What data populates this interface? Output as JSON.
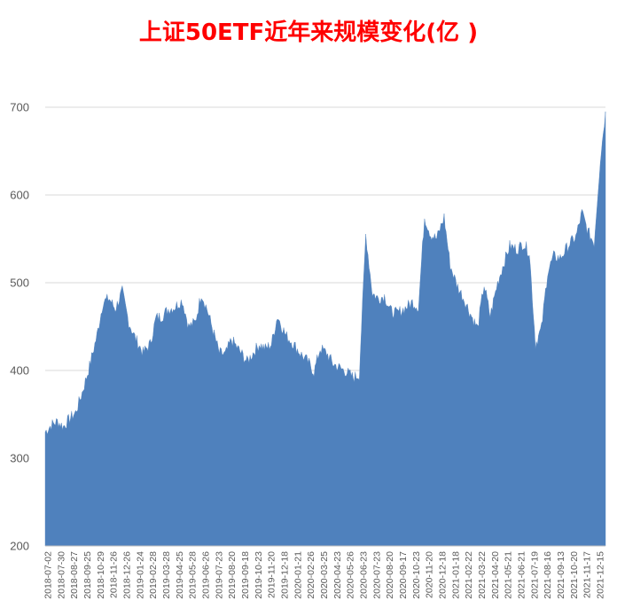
{
  "chart_data": {
    "type": "area",
    "title": "上证50ETF近年来规模变化(亿 )",
    "xlabel": "",
    "ylabel": "",
    "ylim": [
      200,
      700
    ],
    "yticks": [
      200,
      300,
      400,
      500,
      600,
      700
    ],
    "grid": true,
    "legend": "none",
    "color": "#4f81bd",
    "x_tick_labels": [
      "2018-07-02",
      "2018-07-30",
      "2018-08-27",
      "2018-09-25",
      "2018-10-29",
      "2018-11-26",
      "2018-12-26",
      "2019-01-24",
      "2019-02-28",
      "2019-03-28",
      "2019-04-25",
      "2019-05-28",
      "2019-06-26",
      "2019-07-23",
      "2019-08-20",
      "2019-09-18",
      "2019-10-23",
      "2019-11-20",
      "2019-12-18",
      "2020-01-21",
      "2020-02-26",
      "2020-03-25",
      "2020-04-23",
      "2020-05-26",
      "2020-06-23",
      "2020-07-23",
      "2020-08-20",
      "2020-09-17",
      "2020-10-23",
      "2020-11-20",
      "2020-12-18",
      "2021-01-18",
      "2021-02-22",
      "2021-03-22",
      "2021-04-20",
      "2021-05-21",
      "2021-06-21",
      "2021-07-19",
      "2021-08-16",
      "2021-09-13",
      "2021-10-20",
      "2021-11-17",
      "2021-12-15"
    ],
    "x": [
      "2018-07-02",
      "2018-07-16",
      "2018-07-30",
      "2018-08-13",
      "2018-08-27",
      "2018-09-10",
      "2018-09-25",
      "2018-10-12",
      "2018-10-29",
      "2018-11-12",
      "2018-11-26",
      "2018-12-10",
      "2018-12-26",
      "2019-01-10",
      "2019-01-24",
      "2019-02-12",
      "2019-02-28",
      "2019-03-14",
      "2019-03-28",
      "2019-04-11",
      "2019-04-25",
      "2019-05-13",
      "2019-05-28",
      "2019-06-12",
      "2019-06-26",
      "2019-07-09",
      "2019-07-23",
      "2019-08-06",
      "2019-08-20",
      "2019-09-03",
      "2019-09-18",
      "2019-10-09",
      "2019-10-23",
      "2019-11-06",
      "2019-11-20",
      "2019-12-04",
      "2019-12-18",
      "2020-01-06",
      "2020-01-21",
      "2020-02-11",
      "2020-02-26",
      "2020-03-11",
      "2020-03-25",
      "2020-04-09",
      "2020-04-23",
      "2020-05-12",
      "2020-05-26",
      "2020-06-09",
      "2020-06-23",
      "2020-07-08",
      "2020-07-23",
      "2020-08-06",
      "2020-08-20",
      "2020-09-03",
      "2020-09-17",
      "2020-10-09",
      "2020-10-23",
      "2020-11-06",
      "2020-11-20",
      "2020-12-04",
      "2020-12-18",
      "2021-01-04",
      "2021-01-18",
      "2021-02-02",
      "2021-02-22",
      "2021-03-08",
      "2021-03-22",
      "2021-04-06",
      "2021-04-20",
      "2021-05-07",
      "2021-05-21",
      "2021-06-04",
      "2021-06-21",
      "2021-07-05",
      "2021-07-19",
      "2021-08-02",
      "2021-08-16",
      "2021-08-30",
      "2021-09-13",
      "2021-09-28",
      "2021-10-20",
      "2021-11-03",
      "2021-11-17",
      "2021-12-01",
      "2021-12-15",
      "2021-12-29",
      "2022-01-10"
    ],
    "values": [
      330,
      338,
      342,
      336,
      345,
      352,
      375,
      405,
      440,
      478,
      482,
      470,
      490,
      455,
      438,
      420,
      430,
      460,
      462,
      470,
      472,
      480,
      450,
      455,
      488,
      470,
      445,
      420,
      418,
      435,
      425,
      410,
      420,
      430,
      425,
      430,
      462,
      440,
      432,
      418,
      410,
      398,
      425,
      420,
      408,
      402,
      398,
      392,
      395,
      555,
      488,
      482,
      485,
      468,
      465,
      472,
      478,
      472,
      575,
      555,
      550,
      575,
      520,
      498,
      478,
      462,
      448,
      498,
      462,
      500,
      522,
      542,
      538,
      545,
      535,
      430,
      448,
      512,
      530,
      528,
      545,
      552,
      580,
      558,
      545,
      640,
      695
    ]
  }
}
